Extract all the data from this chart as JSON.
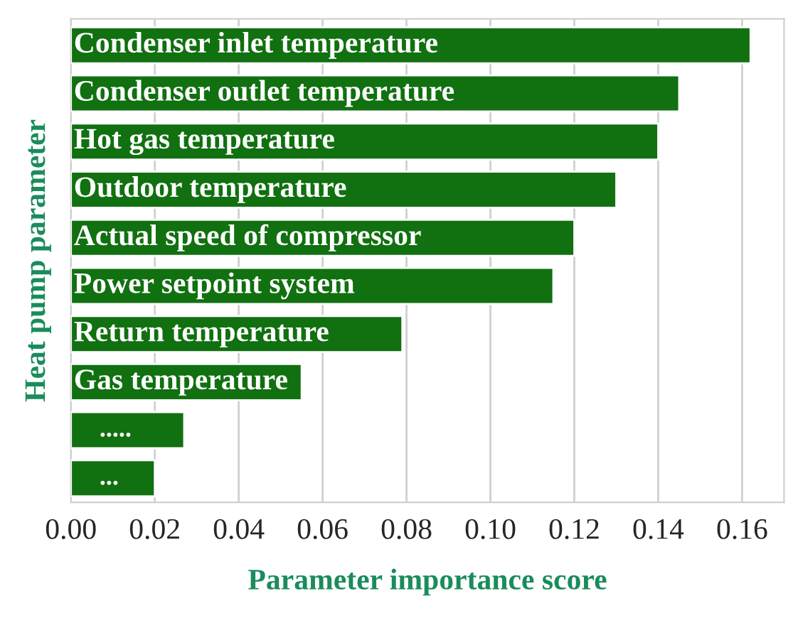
{
  "chart_data": {
    "type": "bar",
    "orientation": "horizontal",
    "categories": [
      "Condenser inlet temperature",
      "Condenser outlet temperature",
      "Hot gas temperature",
      "Outdoor temperature",
      "Actual speed of compressor",
      "Power setpoint system",
      "Return temperature",
      "Gas temperature",
      ".....",
      "..."
    ],
    "values": [
      0.162,
      0.145,
      0.14,
      0.13,
      0.12,
      0.115,
      0.079,
      0.055,
      0.027,
      0.02
    ],
    "color": "#117010",
    "xlabel": "Parameter importance score",
    "ylabel": "Heat pump parameter",
    "xlim": [
      0,
      0.17
    ],
    "xticks": [
      {
        "value": 0,
        "label": "0.00"
      },
      {
        "value": 0.02,
        "label": "0.02"
      },
      {
        "value": 0.04,
        "label": "0.04"
      },
      {
        "value": 0.06,
        "label": "0.06"
      },
      {
        "value": 0.08,
        "label": "0.08"
      },
      {
        "value": 0.1,
        "label": "0.10"
      },
      {
        "value": 0.12,
        "label": "0.12"
      },
      {
        "value": 0.14,
        "label": "0.14"
      },
      {
        "value": 0.16,
        "label": "0.16"
      }
    ],
    "grid": "x",
    "tick_labels": "x"
  }
}
